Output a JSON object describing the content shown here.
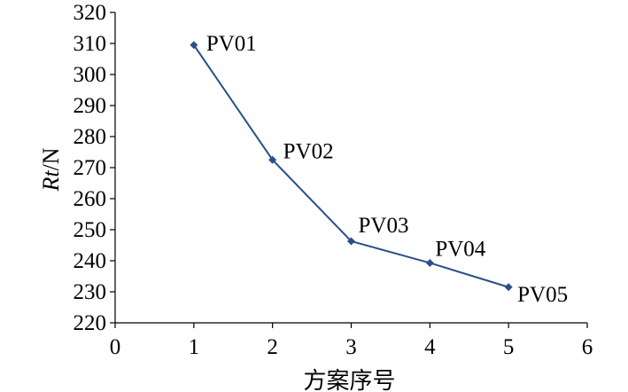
{
  "chart_data": {
    "type": "line",
    "title": "",
    "xlabel": "方案序号",
    "ylabel_italic": "Rt",
    "ylabel_rest": "/N",
    "xlim": [
      0,
      6
    ],
    "ylim": [
      220,
      320
    ],
    "xticks": [
      0,
      1,
      2,
      3,
      4,
      5,
      6
    ],
    "yticks": [
      220,
      230,
      240,
      250,
      260,
      270,
      280,
      290,
      300,
      310,
      320
    ],
    "grid": false,
    "legend": "none",
    "series": [
      {
        "x": [
          1,
          2,
          3,
          4,
          5
        ],
        "y": [
          309.5,
          272.5,
          246.3,
          239.3,
          231.5
        ],
        "labels": [
          "PV01",
          "PV02",
          "PV03",
          "PV04",
          "PV05"
        ],
        "color": "#2a4f8a",
        "marker": "diamond"
      }
    ]
  }
}
